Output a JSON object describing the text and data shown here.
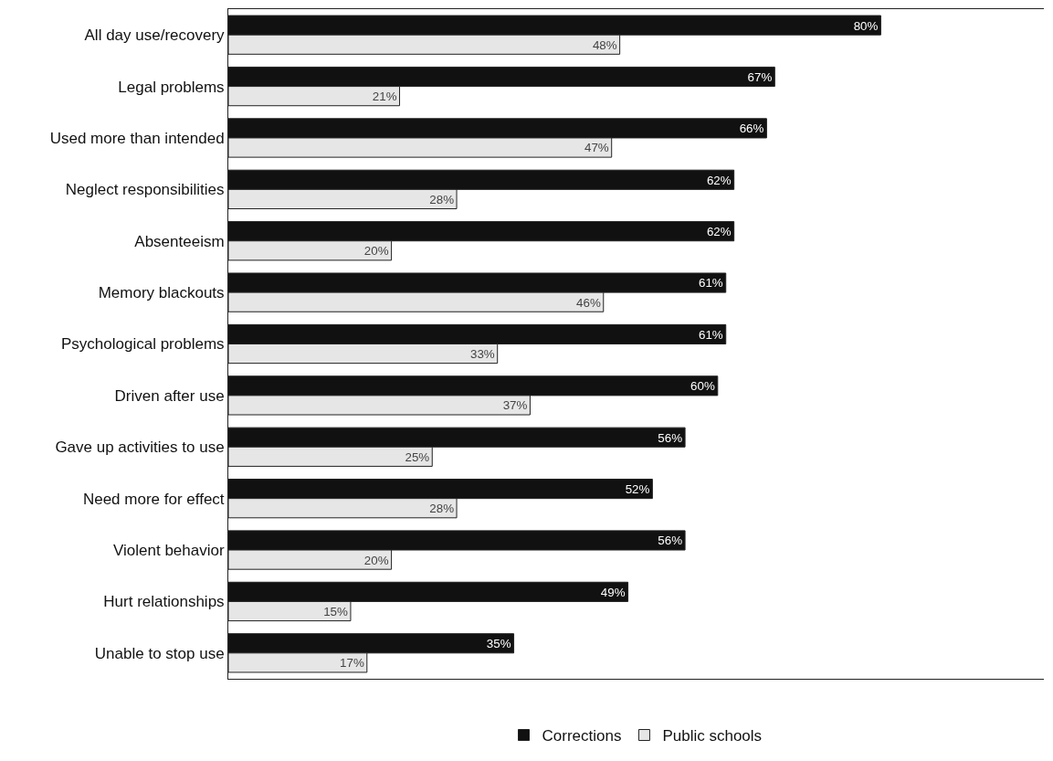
{
  "chart_data": {
    "type": "bar",
    "orientation": "horizontal",
    "categories": [
      "All day use/recovery",
      "Legal problems",
      "Used more than intended",
      "Neglect responsibilities",
      "Absenteeism",
      "Memory blackouts",
      "Psychological problems",
      "Driven after use",
      "Gave up activities to use",
      "Need more for effect",
      "Violent behavior",
      "Hurt relationships",
      "Unable to stop use"
    ],
    "series": [
      {
        "name": "Corrections",
        "color": "#111111",
        "values": [
          80,
          67,
          66,
          62,
          62,
          61,
          61,
          60,
          56,
          52,
          56,
          49,
          35
        ],
        "value_labels": [
          "80%",
          "67%",
          "66%",
          "62%",
          "62%",
          "61%",
          "61%",
          "60%",
          "56%",
          "52%",
          "56%",
          "49%",
          "35%"
        ]
      },
      {
        "name": "Public schools",
        "color": "#e6e6e6",
        "values": [
          48,
          21,
          47,
          28,
          20,
          46,
          33,
          37,
          25,
          28,
          20,
          15,
          17
        ],
        "value_labels": [
          "48%",
          "21%",
          "47%",
          "28%",
          "20%",
          "46%",
          "33%",
          "37%",
          "25%",
          "28%",
          "20%",
          "15%",
          "17%"
        ]
      }
    ],
    "xlim": [
      0,
      100
    ],
    "tick_labels": "y",
    "legend": "bottom"
  }
}
